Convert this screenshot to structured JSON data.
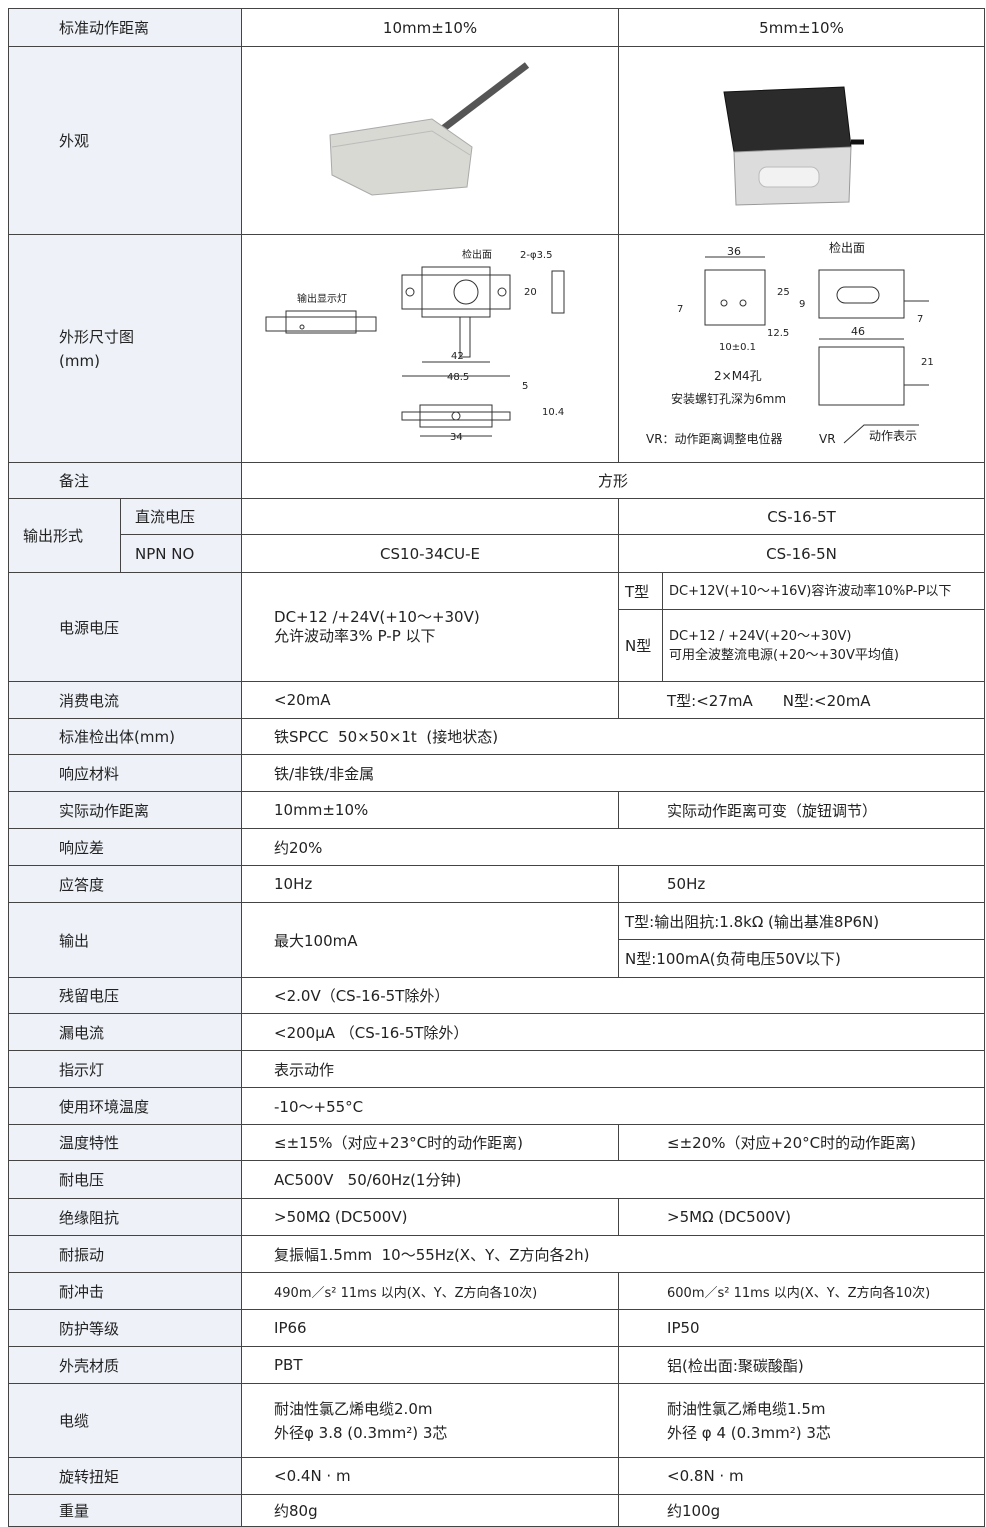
{
  "table": {
    "header": [
      "标准动作距离",
      "10mm±10%",
      "5mm±10%"
    ],
    "appearance": "外观",
    "dimensions": {
      "label": [
        "外形尺寸图",
        "(mm)"
      ],
      "left": [
        "检出面",
        "2-φ3.5",
        "输出显示灯",
        "20",
        "42",
        "48.5",
        "5",
        "10.4",
        "34"
      ],
      "right": [
        "36",
        "检出面",
        "25",
        "9",
        "7",
        "7",
        "12.5",
        "46",
        "10±0.1",
        "21",
        "2×M4孔",
        "安装螺钉孔深为6mm",
        "VR：动作距离调整电位器",
        "VR",
        "动作表示"
      ]
    },
    "rows": [
      [
        "备注",
        "方形"
      ],
      [
        "输出形式",
        "直流电压",
        "CS-16-5T"
      ],
      [
        "NPN NO",
        "CS10-34CU-E",
        "CS-16-5N"
      ],
      [
        "电源电压",
        [
          "DC+12 /+24V(+10～+30V)",
          "允许波动率3% P-P 以下"
        ],
        "T型",
        "DC+12V(+10～+16V)容许波动率10%P-P以下"
      ],
      [
        "N型",
        [
          "DC+12 / +24V(+20～+30V)",
          "可用全波整流电源(+20～+30V平均值)"
        ]
      ],
      [
        "消费电流",
        "<20mA",
        "T型:<27mA　　N型:<20mA"
      ],
      [
        "标准检出体(mm)",
        "铁SPCC  50×50×1t  (接地状态)"
      ],
      [
        "响应材料",
        "铁/非铁/非金属"
      ],
      [
        "实际动作距离",
        "10mm±10%",
        "实际动作距离可变（旋钮调节）"
      ],
      [
        "响应差",
        "约20%"
      ],
      [
        "应答度",
        "10Hz",
        "50Hz"
      ],
      [
        "输出",
        "最大100mA",
        "T型:输出阻抗:1.8kΩ (输出基准8P6N)"
      ],
      [
        "N型:100mA(负荷电压50V以下)"
      ],
      [
        "残留电压",
        "<2.0V（CS-16-5T除外）"
      ],
      [
        "漏电流",
        "<200μA （CS-16-5T除外）"
      ],
      [
        "指示灯",
        "表示动作"
      ],
      [
        "使用环境温度",
        "-10～+55°C"
      ],
      [
        "温度特性",
        "≤±15%（对应+23°C时的动作距离)",
        "≤±20%（对应+20°C时的动作距离)"
      ],
      [
        "耐电压",
        "AC500V   50/60Hz(1分钟)"
      ],
      [
        "绝缘阻抗",
        ">50MΩ (DC500V)",
        ">5MΩ (DC500V)"
      ],
      [
        "耐振动",
        "复振幅1.5mm  10～55Hz(X、Y、Z方向各2h)"
      ],
      [
        "耐冲击",
        "490m／s² 11ms 以内(X、Y、Z方向各10次)",
        "600m／s² 11ms 以内(X、Y、Z方向各10次)"
      ],
      [
        "防护等级",
        "IP66",
        "IP50"
      ],
      [
        "外壳材质",
        "PBT",
        "铝(检出面:聚碳酸酯)"
      ],
      [
        "电缆",
        [
          "耐油性氯乙烯电缆2.0m",
          "外径φ 3.8 (0.3mm²) 3芯"
        ],
        [
          "耐油性氯乙烯电缆1.5m",
          "外径 φ 4 (0.3mm²) 3芯"
        ]
      ],
      [
        "旋转扭矩",
        "<0.4N · m",
        "<0.8N · m"
      ],
      [
        "重量",
        "约80g",
        "约100g"
      ]
    ]
  }
}
